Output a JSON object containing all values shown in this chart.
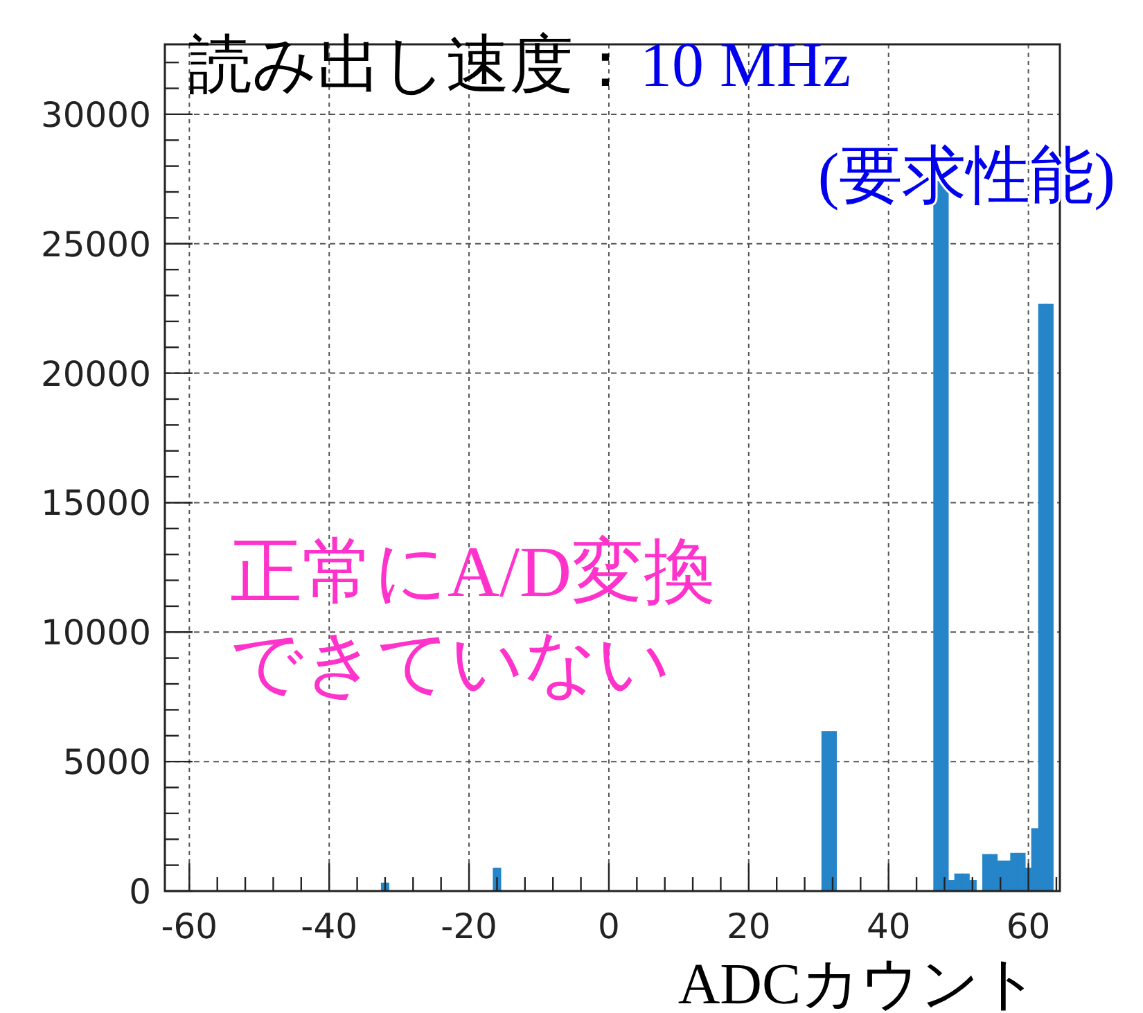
{
  "chart_data": {
    "type": "histogram",
    "title": "読み出し速度：",
    "subtitle": "10 MHz (要求性能)",
    "xlabel": "ADCカウント",
    "annotations": [
      "正常にA/D変換",
      "できていない"
    ],
    "color": "#2585c8",
    "bins": [
      -63.5,
      -62.5,
      -61.5,
      -60.5,
      -59.5,
      -58.5,
      -57.5,
      -56.5,
      -55.5,
      -54.5,
      -53.5,
      -52.5,
      -51.5,
      -50.5,
      -49.5,
      -48.5,
      -47.5,
      -46.5,
      -45.5,
      -44.5,
      -43.5,
      -42.5,
      -41.5,
      -40.5,
      -39.5,
      -38.5,
      -37.5,
      -36.5,
      -35.5,
      -34.5,
      -33.5,
      -32.5,
      -31.5,
      -30.5,
      -29.5,
      -28.5,
      -27.5,
      -26.5,
      -25.5,
      -24.5,
      -23.5,
      -22.5,
      -21.5,
      -20.5,
      -19.5,
      -18.5,
      -17.5,
      -16.5,
      -15.5,
      -14.5,
      -13.5,
      -12.5,
      -11.5,
      -10.5,
      -9.5,
      -8.5,
      -7.5,
      -6.5,
      -5.5,
      -4.5,
      -3.5,
      -2.5,
      -1.5,
      -0.5,
      0.5,
      1.5,
      2.5,
      3.5,
      4.5,
      5.5,
      6.5,
      7.5,
      8.5,
      9.5,
      10.5,
      11.5,
      12.5,
      13.5,
      14.5,
      15.5,
      16.5,
      17.5,
      18.5,
      19.5,
      20.5,
      21.5,
      22.5,
      23.5,
      24.5,
      25.5,
      26.5,
      27.5,
      28.5,
      29.5,
      30.5,
      31.5,
      32.5,
      33.5,
      34.5,
      35.5,
      36.5,
      37.5,
      38.5,
      39.5,
      40.5,
      41.5,
      42.5,
      43.5,
      44.5,
      45.5,
      46.5,
      47.5,
      48.5,
      49.5,
      50.5,
      51.5,
      52.5,
      53.5,
      54.5,
      55.5,
      56.5,
      57.5,
      58.5,
      59.5,
      60.5,
      61.5,
      62.5,
      63.5,
      64.5
    ],
    "values": [
      0,
      0,
      0,
      0,
      0,
      0,
      0,
      0,
      0,
      0,
      0,
      0,
      0,
      0,
      0,
      0,
      0,
      0,
      0,
      0,
      0,
      0,
      0,
      0,
      0,
      0,
      0,
      0,
      0,
      0,
      0,
      300,
      0,
      0,
      0,
      0,
      0,
      0,
      0,
      0,
      0,
      0,
      0,
      0,
      0,
      0,
      0,
      870,
      0,
      0,
      0,
      0,
      0,
      0,
      0,
      0,
      0,
      0,
      0,
      0,
      0,
      0,
      0,
      0,
      0,
      0,
      0,
      0,
      0,
      0,
      0,
      0,
      0,
      0,
      0,
      0,
      0,
      0,
      0,
      0,
      0,
      0,
      0,
      0,
      0,
      0,
      0,
      0,
      0,
      0,
      0,
      0,
      0,
      0,
      6150,
      6150,
      0,
      0,
      0,
      0,
      0,
      0,
      0,
      0,
      0,
      0,
      0,
      0,
      0,
      0,
      27400,
      27400,
      400,
      650,
      650,
      400,
      0,
      1400,
      1400,
      1150,
      1150,
      1450,
      1450,
      870,
      2400,
      22650,
      22650,
      0
    ],
    "xlim": [
      -63.5,
      64.5
    ],
    "xticks": [
      -60,
      -40,
      -20,
      0,
      20,
      40,
      60
    ],
    "ylim": [
      0,
      32700
    ],
    "yticks": [
      0,
      5000,
      10000,
      15000,
      20000,
      25000,
      30000
    ],
    "grid": true
  }
}
